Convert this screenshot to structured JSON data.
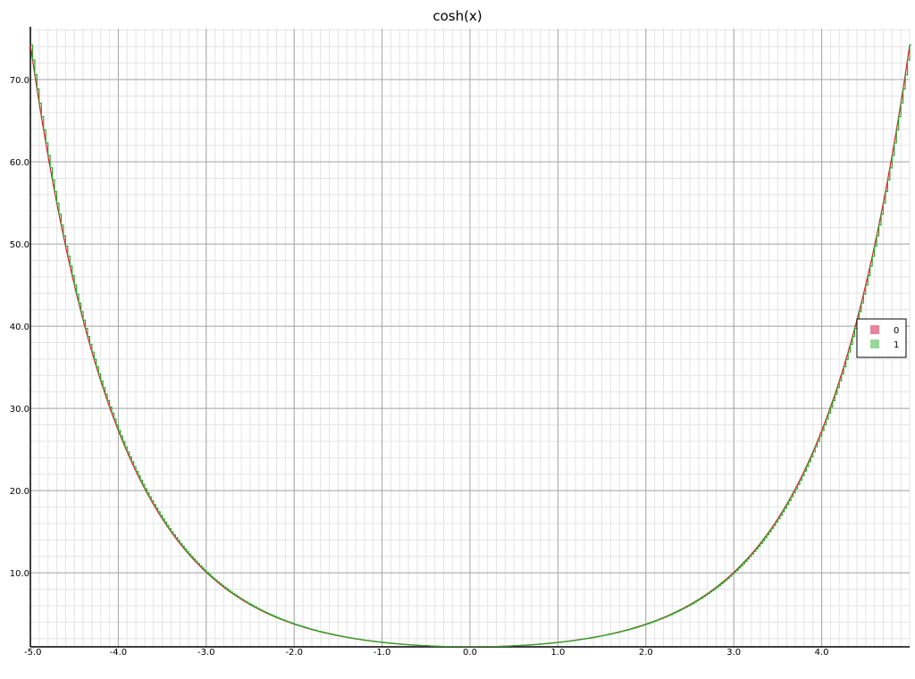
{
  "chart_data": {
    "type": "line",
    "title": "cosh(x)",
    "xlabel": "",
    "ylabel": "",
    "xlim": [
      -5.0,
      5.0
    ],
    "ylim": [
      1.0,
      76.2
    ],
    "x_ticks": [
      "-5.0",
      "-4.0",
      "-3.0",
      "-2.0",
      "-1.0",
      "0.0",
      "1.0",
      "2.0",
      "3.0",
      "4.0"
    ],
    "y_ticks": [
      "10.0",
      "20.0",
      "30.0",
      "40.0",
      "50.0",
      "60.0",
      "70.0"
    ],
    "grid": true,
    "legend_position": "right",
    "series": [
      {
        "name": "0",
        "function": "cosh(x)",
        "style": "smooth",
        "color": "#e8162c",
        "legend_color": "#e8849a"
      },
      {
        "name": "1",
        "function": "cosh(x)",
        "style": "step",
        "color": "#28a428",
        "legend_color": "#98d898"
      }
    ]
  }
}
